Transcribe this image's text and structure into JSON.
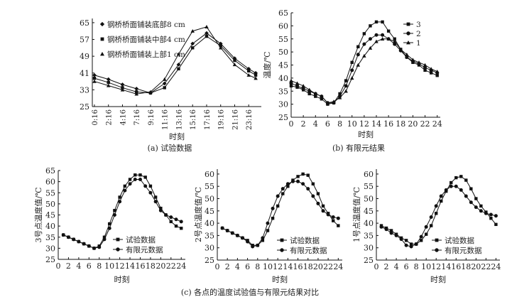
{
  "figure_caption": "(c) 各点的温度试验值与有限元结果对比",
  "chart_data": [
    {
      "id": "a",
      "type": "line",
      "caption": "(a) 试验数据",
      "xlabel": "时刻",
      "ylabel": "",
      "x_tick_labels": [
        "0:16",
        "2:16",
        "4:16",
        "7:16",
        "9:16",
        "11:16",
        "13:16",
        "15:16",
        "17:16",
        "19:16",
        "21:16",
        "23:16"
      ],
      "x": [
        0,
        2,
        4,
        6,
        8,
        10,
        12,
        14,
        16,
        18,
        20,
        22,
        23
      ],
      "xlim": [
        -0.3,
        23.8
      ],
      "ylim": [
        25,
        67
      ],
      "y_ticks": [
        25,
        33,
        41,
        49,
        57,
        65
      ],
      "legend_position": "top-left",
      "series": [
        {
          "name": "钢桥桥面铺装底部8 cm",
          "marker": "diamond",
          "values": [
            40,
            38,
            35.5,
            33.5,
            31.5,
            36,
            45,
            55,
            60,
            55,
            48,
            43,
            41
          ]
        },
        {
          "name": "钢桥桥面铺装中部4 cm",
          "marker": "square",
          "values": [
            38.5,
            36.5,
            34,
            32,
            31.5,
            34,
            43,
            53,
            58.5,
            54,
            47,
            42,
            40
          ]
        },
        {
          "name": "钢桥桥面铺装上部1 cm",
          "marker": "triangle",
          "values": [
            37,
            35,
            33,
            31,
            32,
            38,
            50,
            61,
            63,
            53,
            45,
            40,
            38.5
          ]
        }
      ]
    },
    {
      "id": "b",
      "type": "line",
      "caption": "(b) 有限元结果",
      "xlabel": "时刻",
      "ylabel": "温度/℃",
      "x": [
        0,
        1,
        2,
        3,
        4,
        5,
        6,
        7,
        8,
        9,
        10,
        11,
        12,
        13,
        14,
        15,
        16,
        17,
        18,
        19,
        20,
        21,
        22,
        23,
        24
      ],
      "x_ticks": [
        0,
        2,
        4,
        6,
        8,
        10,
        12,
        14,
        16,
        18,
        20,
        22,
        24
      ],
      "xlim": [
        0,
        24.5
      ],
      "ylim": [
        25,
        65
      ],
      "y_ticks": [
        25,
        30,
        35,
        40,
        45,
        50,
        55,
        60,
        65
      ],
      "legend_position": "top-right",
      "series": [
        {
          "name": "3",
          "marker": "square",
          "values": [
            37,
            36.5,
            35.5,
            34,
            33,
            32,
            30,
            30.5,
            34,
            39,
            46,
            52,
            57,
            60,
            61.5,
            61.5,
            58,
            55,
            51,
            48,
            46,
            45,
            43,
            42,
            41
          ]
        },
        {
          "name": "2",
          "marker": "circle",
          "values": [
            38,
            37,
            36,
            35,
            34,
            33,
            30.5,
            30.5,
            33,
            37,
            43,
            49,
            53,
            55,
            56.5,
            56.5,
            55,
            53,
            50.5,
            48,
            46.5,
            45.5,
            44,
            43,
            42
          ]
        },
        {
          "name": "1",
          "marker": "triangle",
          "values": [
            39,
            38,
            37,
            35.5,
            34,
            33,
            30.5,
            31,
            32.5,
            35,
            40,
            45,
            48.5,
            51.5,
            54,
            55,
            55,
            54,
            51,
            49,
            47,
            46,
            45,
            43.5,
            42.5
          ]
        }
      ]
    },
    {
      "id": "c3",
      "type": "line",
      "caption": "",
      "xlabel": "时刻",
      "ylabel": "3号点温度值/℃",
      "x": [
        1,
        2,
        3,
        4,
        5,
        6,
        7,
        8,
        9,
        10,
        11,
        12,
        13,
        14,
        15,
        16,
        17,
        18,
        19,
        20,
        21,
        22,
        23,
        24
      ],
      "x_ticks": [
        0,
        2,
        4,
        6,
        8,
        10,
        12,
        14,
        16,
        18,
        20,
        22,
        24
      ],
      "xlim": [
        0,
        24.8
      ],
      "ylim": [
        25,
        65
      ],
      "y_ticks": [
        25,
        30,
        35,
        40,
        45,
        50,
        55,
        60,
        65
      ],
      "legend_position": "bottom-right",
      "series": [
        {
          "name": "试验数据",
          "marker": "square",
          "values": [
            36,
            35,
            34,
            33,
            32,
            31,
            30,
            31,
            35,
            41,
            47,
            53,
            58,
            61,
            63,
            63,
            62,
            58,
            53,
            48,
            45,
            42,
            40,
            39
          ]
        },
        {
          "name": "有限元数据",
          "marker": "circle",
          "values": [
            36,
            35,
            34,
            33,
            32,
            31,
            30,
            30.5,
            34,
            39,
            45,
            51,
            56,
            59,
            61,
            61,
            58,
            55,
            51,
            47,
            45,
            44,
            43,
            42
          ]
        }
      ]
    },
    {
      "id": "c2",
      "type": "line",
      "caption": "",
      "xlabel": "时刻",
      "ylabel": "2号点温度值/℃",
      "x": [
        1,
        2,
        3,
        4,
        5,
        6,
        7,
        8,
        9,
        10,
        11,
        12,
        13,
        14,
        15,
        16,
        17,
        18,
        19,
        20,
        21,
        22,
        23,
        24
      ],
      "x_ticks": [
        0,
        2,
        4,
        6,
        8,
        10,
        12,
        14,
        16,
        18,
        20,
        22,
        24
      ],
      "xlim": [
        0,
        24.8
      ],
      "ylim": [
        25,
        62
      ],
      "y_ticks": [
        25,
        30,
        35,
        40,
        45,
        50,
        55,
        60
      ],
      "legend_position": "bottom-right",
      "series": [
        {
          "name": "试验数据",
          "marker": "square",
          "values": [
            38,
            37,
            36,
            35,
            34,
            33,
            31,
            31,
            33,
            37,
            42,
            47,
            52,
            55,
            57.5,
            59,
            60,
            59.5,
            56,
            52,
            47,
            44,
            41,
            39
          ]
        },
        {
          "name": "有限元数据",
          "marker": "circle",
          "values": [
            38,
            37,
            36,
            35,
            34,
            32.5,
            30.5,
            31,
            34,
            40,
            46,
            51,
            54,
            56,
            57,
            57,
            56,
            54,
            51,
            48,
            45,
            43.5,
            42.5,
            42
          ]
        }
      ]
    },
    {
      "id": "c1",
      "type": "line",
      "caption": "",
      "xlabel": "时刻",
      "ylabel": "1号点温度值/℃",
      "x": [
        1,
        2,
        3,
        4,
        5,
        6,
        7,
        8,
        9,
        10,
        11,
        12,
        13,
        14,
        15,
        16,
        17,
        18,
        19,
        20,
        21,
        22,
        23,
        24
      ],
      "x_ticks": [
        0,
        2,
        4,
        6,
        8,
        10,
        12,
        14,
        16,
        18,
        20,
        22,
        24
      ],
      "xlim": [
        0,
        24.8
      ],
      "ylim": [
        25,
        62
      ],
      "y_ticks": [
        25,
        30,
        35,
        40,
        45,
        50,
        55,
        60
      ],
      "legend_position": "bottom-right",
      "series": [
        {
          "name": "试验数据",
          "marker": "square",
          "values": [
            39,
            38,
            37,
            35.5,
            34,
            33,
            31.5,
            31.5,
            33,
            35.5,
            39,
            44,
            49,
            53,
            56.5,
            58.5,
            59,
            57.5,
            54,
            50,
            47,
            44.5,
            42,
            39.5
          ]
        },
        {
          "name": "有限元数据",
          "marker": "circle",
          "values": [
            38.5,
            37.5,
            36,
            35,
            33.5,
            31,
            30.5,
            31.5,
            34.5,
            38.5,
            42.5,
            47,
            51,
            53.5,
            55,
            55,
            53.5,
            51,
            48.5,
            46.5,
            45,
            44,
            43.5,
            43
          ]
        }
      ]
    }
  ]
}
